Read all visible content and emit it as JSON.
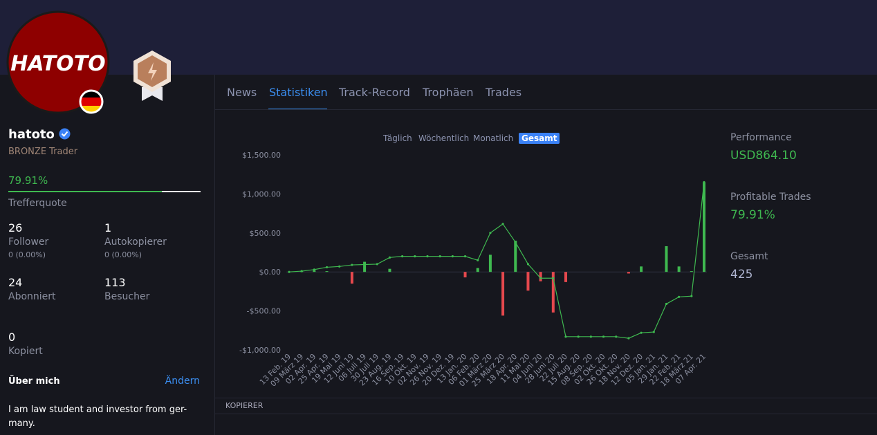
{
  "header": {
    "avatar_text": "HATOTO"
  },
  "profile": {
    "name": "hatoto",
    "rank": "BRONZE Trader",
    "hit_rate": "79.91%",
    "hit_rate_label": "Trefferquote",
    "stats": [
      {
        "value": 26,
        "label": "Follower",
        "sub": "0 (0.00%)"
      },
      {
        "value": 1,
        "label": "Autokopierer",
        "sub": "0 (0.00%)"
      },
      {
        "value": 24,
        "label": "Abonniert"
      },
      {
        "value": 113,
        "label": "Besucher"
      },
      {
        "value": 0,
        "label": "Kopiert"
      }
    ]
  },
  "tabs": [
    "News",
    "Statistiken",
    "Track-Record",
    "Trophäen",
    "Trades"
  ],
  "toggles": [
    "Täglich",
    "Wöchentlich",
    "Monatlich",
    "Gesamt"
  ],
  "summary": [
    {
      "label": "Performance",
      "value": "USD864.10"
    },
    {
      "label": "Profitable Trades",
      "value": "79.91%"
    },
    {
      "label": "Gesamt",
      "value": "425"
    }
  ],
  "about": {
    "title": "Über mich",
    "edit": "Ändern",
    "lines": [
      "I am law student and investor from ger-",
      "many."
    ]
  },
  "section": "KOPIERER",
  "chart_data": {
    "type": "combo",
    "categories": [
      "13 Feb. 19",
      "09 März 19",
      "02 Apr. 19",
      "25 Apr. 19",
      "19 Mai 19",
      "12 Juni 19",
      "06 Juli 19",
      "30 Juli 19",
      "23 Aug. 19",
      "16 Sep. 19",
      "10 Okt. 19",
      "02 Nov. 19",
      "26 Nov. 19",
      "20 Dez. 19",
      "13 Jan. 20",
      "06 Feb. 20",
      "01 März 20",
      "25 März 20",
      "18 Apr. 20",
      "11 Mai 20",
      "04 Juni 20",
      "28 Juni 20",
      "22 Juli 20",
      "15 Aug. 20",
      "08 Sep. 20",
      "02 Okt. 20",
      "26 Okt. 20",
      "18 Nov. 20",
      "12 Dez. 20",
      "05 Jan. 21",
      "29 Jan. 21",
      "22 Feb. 21",
      "18 März 21",
      "07 Apr. 21"
    ],
    "series": [
      {
        "kind": "bar",
        "color": "#3fb950",
        "negative_color": "#e5484d",
        "values": [
          0,
          10,
          20,
          10,
          0,
          -150,
          130,
          0,
          40,
          0,
          0,
          0,
          0,
          0,
          -70,
          50,
          220,
          -560,
          400,
          -240,
          -120,
          -520,
          -130,
          0,
          0,
          0,
          0,
          -20,
          70,
          0,
          330,
          70,
          10,
          1150
        ]
      },
      {
        "kind": "line",
        "color": "#3fb950",
        "values": [
          0,
          10,
          30,
          60,
          70,
          90,
          95,
          100,
          185,
          200,
          200,
          200,
          200,
          200,
          200,
          150,
          500,
          615,
          380,
          100,
          -80,
          -80,
          -830,
          -830,
          -830,
          -830,
          -830,
          -850,
          -780,
          -770,
          -410,
          -320,
          -310,
          1150
        ]
      }
    ],
    "ylim": [
      -1000,
      1500
    ],
    "yticks": [
      {
        "value": -1000,
        "label": "-$1,000.00"
      },
      {
        "value": -500,
        "label": "-$500.00"
      },
      {
        "value": 0,
        "label": "$0.00"
      },
      {
        "value": 500,
        "label": "$500.00"
      },
      {
        "value": 1000,
        "label": "$1,000.00"
      },
      {
        "value": 1500,
        "label": "$1,500.00"
      }
    ],
    "grid": false
  }
}
